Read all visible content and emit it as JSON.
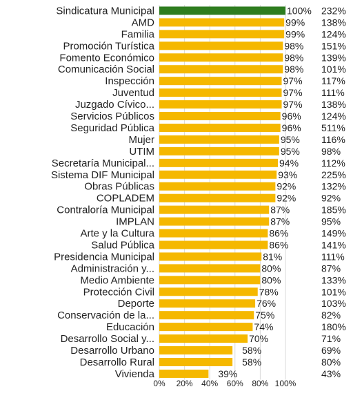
{
  "chart_data": {
    "type": "bar",
    "orientation": "horizontal",
    "grid": true,
    "xlim": [
      0,
      100
    ],
    "x_ticks": [
      "0%",
      "20%",
      "40%",
      "60%",
      "80%",
      "100%"
    ],
    "colors": {
      "bar": "#f5b800",
      "highlight": "#2e7d1f",
      "grid": "#d9d9d9"
    },
    "categories": [
      "Sindicatura Municipal",
      "AMD",
      "Familia",
      "Promoción Turística",
      "Fomento Económico",
      "Comunicación Social",
      "Inspección",
      "Juventud",
      "Juzgado Cívico...",
      "Servicios Públicos",
      "Seguridad Pública",
      "Mujer",
      "UTIM",
      "Secretaría Municipal...",
      "Sistema DIF Municipal",
      "Obras Públicas",
      "COPLADEM",
      "Contraloría Municipal",
      "IMPLAN",
      "Arte y la Cultura",
      "Salud Pública",
      "Presidencia Municipal",
      "Administración y...",
      "Medio Ambiente",
      "Protección Civil",
      "Deporte",
      "Conservación de la...",
      "Educación",
      "Desarrollo Social y...",
      "Desarrollo Urbano",
      "Desarrollo Rural",
      "Vivienda"
    ],
    "values": [
      100,
      99,
      99,
      98,
      98,
      98,
      97,
      97,
      97,
      96,
      96,
      95,
      95,
      94,
      93,
      92,
      92,
      87,
      87,
      86,
      86,
      81,
      80,
      80,
      78,
      76,
      75,
      74,
      70,
      58,
      58,
      39
    ],
    "value_labels": [
      "100%",
      "99%",
      "99%",
      "98%",
      "98%",
      "98%",
      "97%",
      "97%",
      "97%",
      "96%",
      "96%",
      "95%",
      "95%",
      "94%",
      "93%",
      "92%",
      "92%",
      "87%",
      "87%",
      "86%",
      "86%",
      "81%",
      "80%",
      "80%",
      "78%",
      "76%",
      "75%",
      "74%",
      "70%",
      "58%",
      "58%",
      "39%"
    ],
    "secondary_labels": [
      "232%",
      "138%",
      "124%",
      "151%",
      "139%",
      "101%",
      "117%",
      "111%",
      "138%",
      "124%",
      "511%",
      "116%",
      "98%",
      "112%",
      "225%",
      "132%",
      "92%",
      "185%",
      "95%",
      "149%",
      "141%",
      "111%",
      "87%",
      "133%",
      "101%",
      "103%",
      "82%",
      "180%",
      "71%",
      "69%",
      "80%",
      "43%"
    ]
  }
}
